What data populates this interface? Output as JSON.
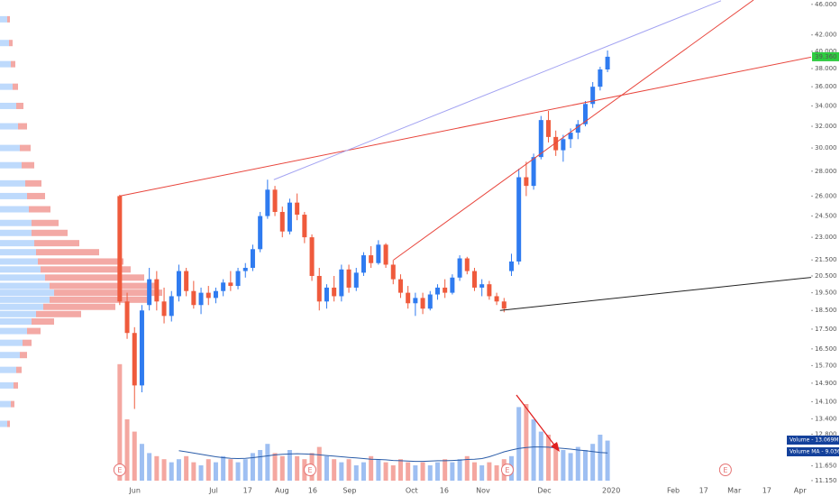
{
  "chart_data": {
    "type": "candlestick",
    "log_scale": true,
    "grid": false,
    "xlim": [
      -32.4,
      187.1
    ],
    "ylim": [
      10.65,
      46.6
    ],
    "xticks": [
      {
        "value": 4.1,
        "label": "Jun"
      },
      {
        "value": 25.4,
        "label": "Jul"
      },
      {
        "value": 34.6,
        "label": "17"
      },
      {
        "value": 43.9,
        "label": "Aug"
      },
      {
        "value": 52.2,
        "label": "16"
      },
      {
        "value": 62.2,
        "label": "Sep"
      },
      {
        "value": 79,
        "label": "Oct"
      },
      {
        "value": 87.8,
        "label": "16"
      },
      {
        "value": 98.3,
        "label": "Nov"
      },
      {
        "value": 114.9,
        "label": "Dec"
      },
      {
        "value": 133,
        "label": "2020"
      },
      {
        "value": 149.8,
        "label": "Feb"
      },
      {
        "value": 158,
        "label": "17"
      },
      {
        "value": 166.3,
        "label": "Mar"
      },
      {
        "value": 175.1,
        "label": "17"
      },
      {
        "value": 184.1,
        "label": "Apr"
      }
    ],
    "yticks": [
      {
        "value": 46,
        "label": "46.000"
      },
      {
        "value": 42,
        "label": "42.000"
      },
      {
        "value": 40,
        "label": "40.000"
      },
      {
        "value": 38,
        "label": "38.000"
      },
      {
        "value": 36,
        "label": "36.000"
      },
      {
        "value": 34,
        "label": "34.000"
      },
      {
        "value": 32,
        "label": "32.000"
      },
      {
        "value": 30,
        "label": "30.000"
      },
      {
        "value": 28,
        "label": "28.000"
      },
      {
        "value": 26,
        "label": "26.000"
      },
      {
        "value": 24.5,
        "label": "24.500"
      },
      {
        "value": 23,
        "label": "23.000"
      },
      {
        "value": 21.5,
        "label": "21.500"
      },
      {
        "value": 20.5,
        "label": "20.500"
      },
      {
        "value": 19.5,
        "label": "19.500"
      },
      {
        "value": 18.5,
        "label": "18.500"
      },
      {
        "value": 17.5,
        "label": "17.500"
      },
      {
        "value": 16.5,
        "label": "16.500"
      },
      {
        "value": 15.7,
        "label": "15.700"
      },
      {
        "value": 14.9,
        "label": "14.900"
      },
      {
        "value": 14.1,
        "label": "14.100"
      },
      {
        "value": 13.4,
        "label": "13.400"
      },
      {
        "value": 12.8,
        "label": "12.800"
      },
      {
        "value": 12.2,
        "label": "12.200"
      },
      {
        "value": 11.65,
        "label": "11.650"
      },
      {
        "value": 11.15,
        "label": "11.150"
      }
    ],
    "up_color": "#2f7bf0",
    "down_color": "#ef5a3c",
    "volume_up_color": "#9ebff2",
    "volume_down_color": "#f4a7a0",
    "ma_color": "#2a5ca8",
    "x": [
      0,
      2,
      4,
      6,
      8,
      10,
      12,
      14,
      16,
      18,
      20,
      22,
      24,
      26,
      28,
      30,
      32,
      34,
      36,
      38,
      40,
      42,
      44,
      46,
      48,
      50,
      52,
      54,
      56,
      58,
      60,
      62,
      64,
      66,
      68,
      70,
      72,
      74,
      76,
      78,
      80,
      82,
      84,
      86,
      88,
      90,
      92,
      94,
      96,
      98,
      100,
      102,
      104,
      106,
      108,
      110,
      112,
      114,
      116,
      118,
      120,
      122,
      124,
      126,
      128,
      130,
      132
    ],
    "open": [
      26.0,
      19.0,
      17.3,
      14.8,
      18.8,
      20.3,
      19.0,
      18.2,
      19.3,
      20.8,
      19.6,
      18.8,
      19.5,
      19.2,
      19.6,
      20.1,
      19.9,
      20.8,
      21.0,
      22.2,
      24.5,
      26.5,
      24.8,
      23.4,
      25.5,
      24.6,
      23.0,
      20.5,
      19.0,
      19.8,
      19.3,
      20.9,
      19.8,
      20.7,
      21.8,
      21.3,
      22.5,
      21.2,
      20.3,
      19.5,
      18.9,
      19.2,
      18.6,
      19.4,
      19.8,
      19.5,
      20.4,
      21.6,
      20.8,
      19.8,
      20.0,
      19.3,
      19.0,
      20.8,
      21.4,
      27.5,
      26.8,
      29.2,
      32.6,
      31.0,
      29.8,
      30.8,
      31.4,
      32.2,
      34.2,
      36.0,
      37.9
    ],
    "high": [
      26.1,
      19.5,
      17.6,
      18.8,
      21.0,
      20.8,
      19.8,
      19.6,
      21.2,
      21.0,
      20.2,
      19.8,
      19.9,
      19.8,
      20.3,
      20.8,
      21.0,
      21.3,
      22.5,
      24.8,
      27.3,
      26.8,
      25.2,
      25.8,
      26.2,
      24.8,
      23.2,
      21.0,
      20.0,
      20.5,
      21.2,
      21.2,
      21.0,
      22.0,
      22.4,
      22.8,
      22.6,
      21.5,
      20.6,
      19.9,
      19.5,
      19.5,
      19.6,
      20.0,
      20.3,
      20.6,
      21.8,
      21.7,
      21.0,
      20.3,
      20.2,
      19.5,
      19.2,
      21.9,
      28.2,
      28.8,
      29.5,
      33.0,
      33.5,
      31.6,
      31.2,
      31.8,
      32.6,
      34.5,
      36.5,
      38.2,
      40.1
    ],
    "low": [
      18.8,
      17.0,
      13.8,
      14.5,
      18.5,
      18.5,
      17.8,
      17.9,
      19.0,
      19.3,
      18.6,
      18.3,
      18.8,
      18.9,
      19.3,
      19.6,
      19.7,
      20.4,
      20.8,
      22.0,
      24.3,
      24.5,
      23.0,
      23.2,
      24.2,
      22.6,
      20.2,
      18.5,
      18.6,
      19.0,
      19.0,
      19.5,
      19.6,
      20.5,
      21.0,
      21.2,
      21.0,
      20.0,
      19.2,
      18.6,
      18.2,
      18.3,
      18.5,
      19.1,
      19.2,
      19.4,
      20.2,
      20.6,
      19.6,
      19.3,
      19.1,
      18.8,
      18.4,
      20.5,
      21.2,
      26.0,
      26.5,
      29.0,
      30.5,
      29.3,
      28.8,
      30.0,
      30.8,
      32.0,
      33.8,
      35.6,
      37.6
    ],
    "close": [
      19.0,
      17.3,
      14.8,
      18.5,
      20.3,
      19.0,
      18.2,
      19.3,
      20.8,
      19.6,
      18.8,
      19.5,
      19.2,
      19.6,
      20.1,
      19.9,
      20.8,
      21.0,
      22.2,
      24.5,
      26.5,
      24.8,
      23.4,
      25.5,
      24.6,
      23.0,
      20.5,
      19.0,
      19.8,
      19.3,
      20.9,
      19.8,
      20.7,
      21.8,
      21.3,
      22.5,
      21.2,
      20.3,
      19.5,
      18.9,
      19.2,
      18.6,
      19.4,
      19.8,
      19.5,
      20.4,
      21.6,
      20.8,
      19.8,
      20.0,
      19.3,
      19.0,
      18.6,
      21.4,
      27.5,
      26.8,
      29.2,
      32.6,
      31.0,
      29.8,
      30.8,
      31.4,
      32.2,
      34.2,
      36.0,
      37.9,
      39.36
    ],
    "volume_ylim": [
      0,
      40
    ],
    "volume": [
      38,
      20,
      16,
      12,
      9,
      8,
      7,
      6,
      7,
      8,
      6,
      5,
      7,
      6,
      8,
      7,
      6,
      7,
      9,
      10,
      12,
      9,
      8,
      10,
      8,
      7,
      9,
      11,
      8,
      7,
      6,
      7,
      5,
      6,
      8,
      7,
      6,
      5,
      7,
      6,
      5,
      6,
      5,
      6,
      7,
      6,
      7,
      8,
      6,
      5,
      6,
      5,
      7,
      8,
      24,
      25,
      20,
      16,
      15,
      12,
      10,
      9,
      11,
      10,
      12,
      15,
      13.069
    ],
    "volume_ma": [
      null,
      null,
      null,
      null,
      null,
      null,
      null,
      null,
      9.8,
      9.4,
      9.0,
      8.6,
      8.2,
      7.8,
      7.5,
      7.3,
      7.2,
      7.3,
      7.5,
      7.8,
      8.1,
      8.4,
      8.6,
      8.7,
      8.8,
      8.7,
      8.6,
      8.4,
      8.2,
      8.0,
      7.8,
      7.6,
      7.4,
      7.2,
      7.0,
      6.9,
      6.8,
      6.6,
      6.5,
      6.4,
      6.3,
      6.3,
      6.4,
      6.5,
      6.5,
      6.6,
      6.7,
      6.9,
      7.0,
      7.2,
      7.8,
      8.6,
      9.4,
      10.0,
      10.5,
      10.8,
      11.0,
      11.0,
      10.9,
      10.7,
      10.5,
      10.3,
      10.0,
      9.8,
      9.5,
      9.2,
      9.036
    ],
    "last_price_label": "39.360",
    "volume_label": "Volume - 13.069M",
    "volume_ma_label": "Volume MA - 9.036M",
    "volume_profile": {
      "xlim": [
        0,
        200
      ],
      "up_color": "#b3d4fb",
      "down_color": "#f19a95",
      "prices": [
        44,
        41,
        38.5,
        36,
        34,
        32,
        30,
        28.5,
        27,
        26,
        25,
        24,
        23.3,
        22.6,
        22,
        21.4,
        20.9,
        20.4,
        19.9,
        19.5,
        19.1,
        18.7,
        18.3,
        17.9,
        17.4,
        16.8,
        16.2,
        15.5,
        14.8,
        14,
        13.2
      ],
      "up": [
        8,
        10,
        12,
        14,
        18,
        20,
        22,
        24,
        28,
        30,
        32,
        35,
        35,
        38,
        40,
        42,
        45,
        50,
        55,
        60,
        55,
        48,
        40,
        35,
        30,
        25,
        22,
        18,
        15,
        12,
        8
      ],
      "down": [
        3,
        4,
        5,
        6,
        8,
        10,
        12,
        14,
        18,
        20,
        24,
        30,
        40,
        50,
        70,
        95,
        100,
        110,
        120,
        120,
        110,
        80,
        50,
        25,
        15,
        10,
        8,
        6,
        5,
        4,
        3
      ]
    },
    "trend_lines": [
      {
        "color": "#e8453c",
        "points": [
          [
            0,
            26
          ],
          [
            194.9,
            40
          ]
        ]
      },
      {
        "color": "#a3a3f2",
        "points": [
          [
            41.7,
            27.3
          ],
          [
            162.7,
            46.5
          ]
        ]
      },
      {
        "color": "#e8453c",
        "points": [
          [
            74.1,
            21.5
          ],
          [
            171.5,
            46.6
          ]
        ]
      },
      {
        "color": "#222222",
        "points": [
          [
            102.9,
            18.5
          ],
          [
            194.9,
            20.6
          ]
        ]
      }
    ],
    "events": [
      {
        "x": 0,
        "label": "E"
      },
      {
        "x": 51.5,
        "label": "E"
      },
      {
        "x": 104.9,
        "label": "E"
      },
      {
        "x": 163.9,
        "label": "E"
      }
    ]
  }
}
